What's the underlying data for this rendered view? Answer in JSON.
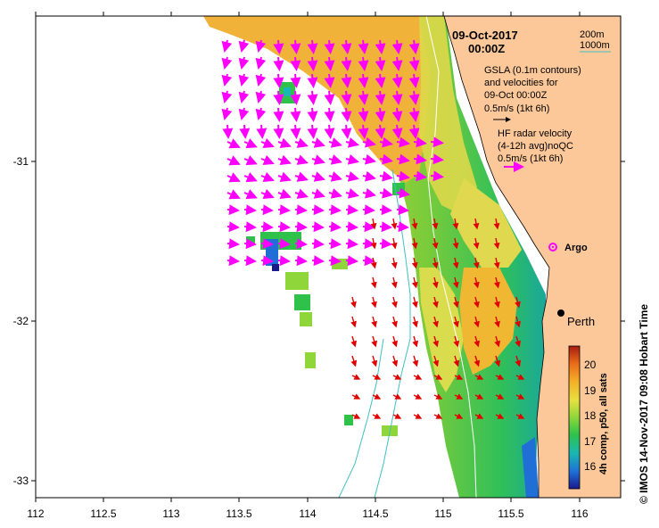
{
  "header": {
    "date": "09-Oct-2017",
    "time": "00:00Z"
  },
  "depth_legend": {
    "shallow_label": "200m",
    "deep_label": "1000m",
    "deep_line_color": "#40c0c0"
  },
  "gsla_legend": {
    "line1": "GSLA (0.1m contours)",
    "line2": "and velocities for",
    "line3": "09-Oct 00:00Z",
    "scale": "0.5m/s (1kt 6h)"
  },
  "hf_legend": {
    "line1": "HF radar velocity",
    "line2": "(4-12h avg)noQC",
    "scale": "0.5m/s (1kt 6h)",
    "arrow_color": "#ff00ff"
  },
  "argo": {
    "label": "Argo",
    "color": "#ff00ff"
  },
  "city": {
    "label": "Perth"
  },
  "axes": {
    "x_ticks": [
      "112",
      "112.5",
      "113",
      "113.5",
      "114",
      "114.5",
      "115",
      "115.5",
      "116"
    ],
    "y_ticks": [
      "-31",
      "-32",
      "-33"
    ]
  },
  "colorbar": {
    "title": "4h comp, p50, all sats",
    "ticks": [
      "16",
      "17",
      "18",
      "19",
      "20"
    ]
  },
  "credit": "© IMOS 14-Nov-2017 09:08 Hobart Time",
  "colors": {
    "land": "#fcc89a",
    "ocean": "#ffffff",
    "hf_arrow": "#ff00ff",
    "gsla_arrow": "#e00000",
    "contour_200m": "#ffffff",
    "contour_1000m": "#40c0c0"
  }
}
